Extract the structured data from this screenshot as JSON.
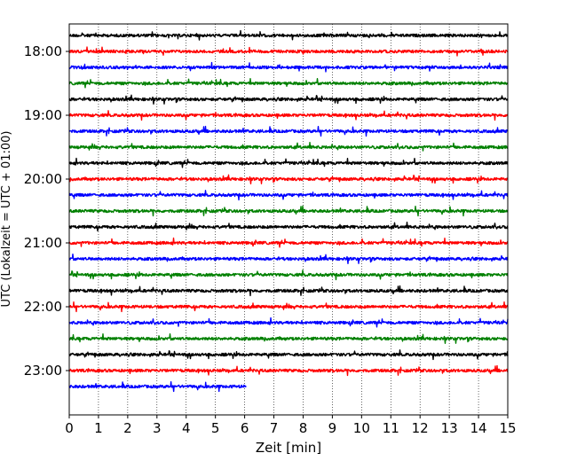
{
  "chart_data": {
    "type": "line",
    "title": "",
    "xlabel": "Zeit  [min]",
    "ylabel": "UTC (Lokalzeit = UTC + 01:00)",
    "xlim": [
      0,
      15
    ],
    "x_ticks": [
      0,
      1,
      2,
      3,
      4,
      5,
      6,
      7,
      8,
      9,
      10,
      11,
      12,
      13,
      14,
      15
    ],
    "y_tick_labels": [
      "18:00",
      "19:00",
      "20:00",
      "21:00",
      "22:00",
      "23:00"
    ],
    "x_grid": true,
    "minutes_per_trace": 15,
    "trace_colors": [
      "#000000",
      "#ff0000",
      "#0000ff",
      "#008000"
    ],
    "traces": [
      {
        "start": "17:45",
        "color": "#000000",
        "end_min": 15
      },
      {
        "start": "18:00",
        "color": "#ff0000",
        "end_min": 15
      },
      {
        "start": "18:15",
        "color": "#0000ff",
        "end_min": 15
      },
      {
        "start": "18:30",
        "color": "#008000",
        "end_min": 15
      },
      {
        "start": "18:45",
        "color": "#000000",
        "end_min": 15
      },
      {
        "start": "19:00",
        "color": "#ff0000",
        "end_min": 15
      },
      {
        "start": "19:15",
        "color": "#0000ff",
        "end_min": 15
      },
      {
        "start": "19:30",
        "color": "#008000",
        "end_min": 15
      },
      {
        "start": "19:45",
        "color": "#000000",
        "end_min": 15
      },
      {
        "start": "20:00",
        "color": "#ff0000",
        "end_min": 15
      },
      {
        "start": "20:15",
        "color": "#0000ff",
        "end_min": 15
      },
      {
        "start": "20:30",
        "color": "#008000",
        "end_min": 15
      },
      {
        "start": "20:45",
        "color": "#000000",
        "end_min": 15
      },
      {
        "start": "21:00",
        "color": "#ff0000",
        "end_min": 15
      },
      {
        "start": "21:15",
        "color": "#0000ff",
        "end_min": 15
      },
      {
        "start": "21:30",
        "color": "#008000",
        "end_min": 15
      },
      {
        "start": "21:45",
        "color": "#000000",
        "end_min": 15
      },
      {
        "start": "22:00",
        "color": "#ff0000",
        "end_min": 15
      },
      {
        "start": "22:15",
        "color": "#0000ff",
        "end_min": 15
      },
      {
        "start": "22:30",
        "color": "#008000",
        "end_min": 15
      },
      {
        "start": "22:45",
        "color": "#000000",
        "end_min": 15
      },
      {
        "start": "23:00",
        "color": "#ff0000",
        "end_min": 15
      },
      {
        "start": "23:15",
        "color": "#0000ff",
        "end_min": 6.05
      }
    ]
  }
}
